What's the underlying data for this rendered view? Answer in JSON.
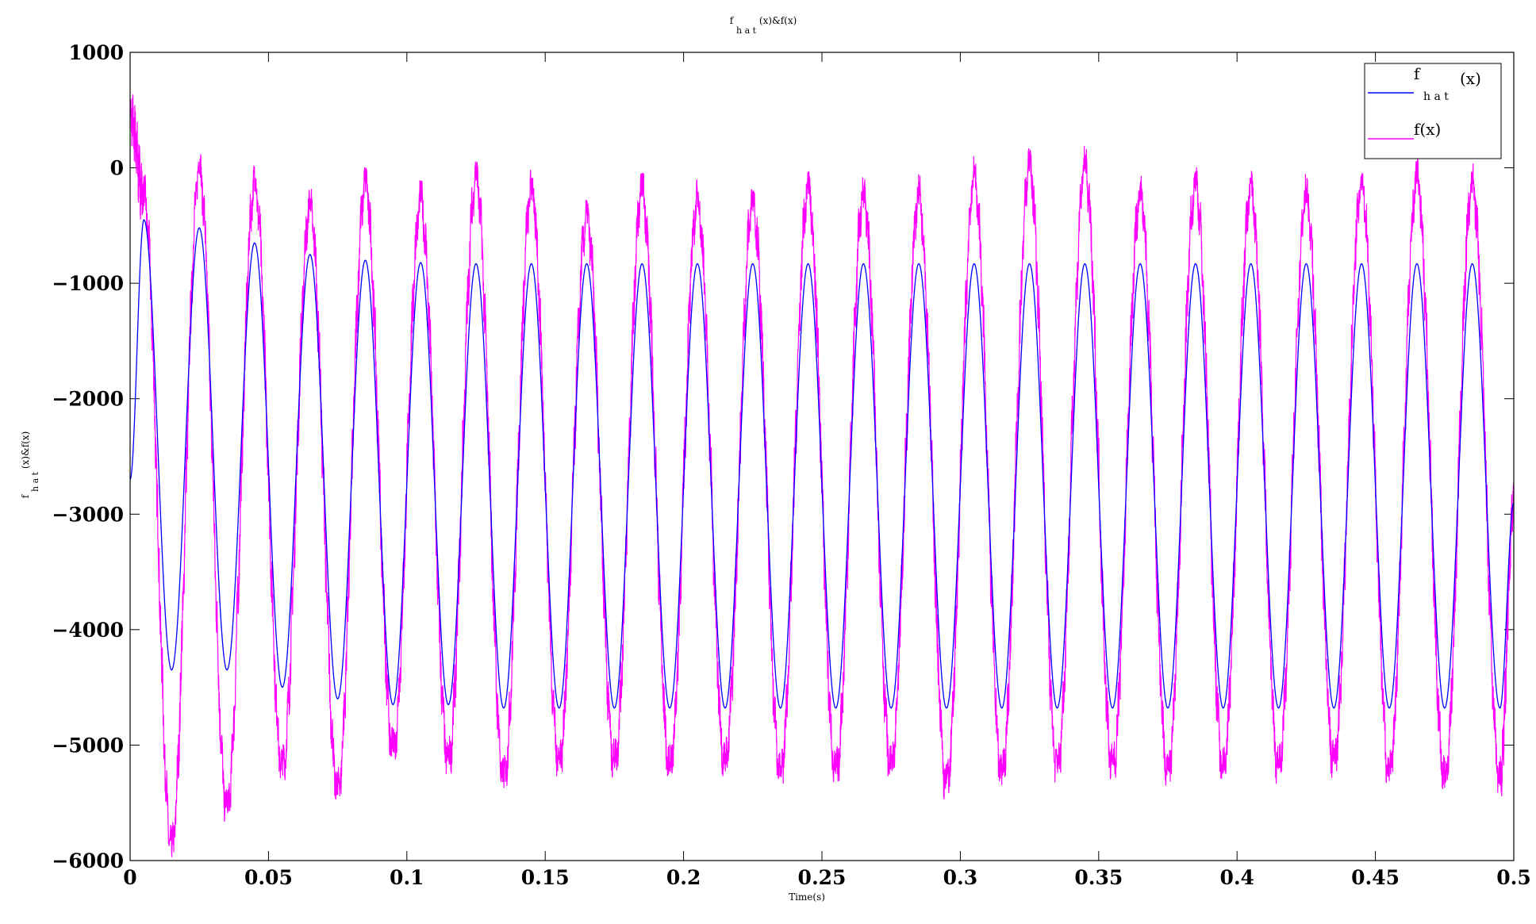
{
  "chart_data": {
    "type": "line",
    "title": {
      "base": "f",
      "sub": "h a t",
      "rest": "(x)&f(x)"
    },
    "xlabel": "Time(s)",
    "ylabel": {
      "base": "f",
      "sub": "h a t",
      "rest": "(x)&f(x)"
    },
    "xlim": [
      0,
      0.5
    ],
    "ylim": [
      -6000,
      1000
    ],
    "xticks": [
      0,
      0.05,
      0.1,
      0.15,
      0.2,
      0.25,
      0.3,
      0.35,
      0.4,
      0.45,
      0.5
    ],
    "xtick_labels": [
      "0",
      "0.05",
      "0.1",
      "0.15",
      "0.2",
      "0.25",
      "0.3",
      "0.35",
      "0.4",
      "0.45",
      "0.5"
    ],
    "yticks": [
      -6000,
      -5000,
      -4000,
      -3000,
      -2000,
      -1000,
      0,
      1000
    ],
    "ytick_labels": [
      "−6000",
      "−5000",
      "−4000",
      "−3000",
      "−2000",
      "−1000",
      "0",
      "1000"
    ],
    "grid": false,
    "legend_position": "top-right",
    "series": [
      {
        "name": {
          "base": "f",
          "sub": "h a t",
          "rest": "(x)"
        },
        "color": "#0000ff",
        "frequency_hz": 50,
        "x": [
          0,
          0.005,
          0.015,
          0.025,
          0.035,
          0.045,
          0.055,
          0.065,
          0.075,
          0.085,
          0.095,
          0.105,
          0.115,
          0.125,
          0.135,
          0.145,
          0.155,
          0.165,
          0.175,
          0.185,
          0.195,
          0.205,
          0.215,
          0.225,
          0.235,
          0.245,
          0.255,
          0.265,
          0.275,
          0.285,
          0.295,
          0.305,
          0.315,
          0.325,
          0.335,
          0.345,
          0.355,
          0.365,
          0.375,
          0.385,
          0.395,
          0.405,
          0.415,
          0.425,
          0.435,
          0.445,
          0.455,
          0.465,
          0.475,
          0.485,
          0.495,
          0.5
        ],
        "y": [
          -2700,
          -450,
          -4350,
          -520,
          -4350,
          -650,
          -4500,
          -750,
          -4600,
          -800,
          -4650,
          -820,
          -4650,
          -830,
          -4680,
          -830,
          -4680,
          -830,
          -4680,
          -830,
          -4680,
          -830,
          -4680,
          -830,
          -4680,
          -830,
          -4680,
          -830,
          -4680,
          -830,
          -4680,
          -830,
          -4680,
          -830,
          -4680,
          -830,
          -4680,
          -830,
          -4680,
          -830,
          -4680,
          -830,
          -4680,
          -830,
          -4680,
          -830,
          -4680,
          -830,
          -4680,
          -830,
          -4680,
          -2900
        ]
      },
      {
        "name": "f(x)",
        "color": "#ff00ff",
        "frequency_hz": 50,
        "x": [
          0,
          0.005,
          0.015,
          0.025,
          0.035,
          0.045,
          0.055,
          0.065,
          0.075,
          0.085,
          0.095,
          0.105,
          0.115,
          0.125,
          0.135,
          0.145,
          0.155,
          0.165,
          0.175,
          0.185,
          0.195,
          0.205,
          0.215,
          0.225,
          0.235,
          0.245,
          0.255,
          0.265,
          0.275,
          0.285,
          0.295,
          0.305,
          0.315,
          0.325,
          0.335,
          0.345,
          0.355,
          0.365,
          0.375,
          0.385,
          0.395,
          0.405,
          0.415,
          0.425,
          0.435,
          0.445,
          0.455,
          0.465,
          0.475,
          0.485,
          0.495,
          0.5
        ],
        "y": [
          450,
          -250,
          -5900,
          -20,
          -5550,
          -150,
          -5200,
          -350,
          -5400,
          -150,
          -5050,
          -300,
          -5150,
          -100,
          -5300,
          -200,
          -5150,
          -450,
          -5150,
          -200,
          -5200,
          -300,
          -5150,
          -300,
          -5250,
          -200,
          -5250,
          -250,
          -5200,
          -250,
          -5350,
          -100,
          -5250,
          0,
          -5200,
          0,
          -5200,
          -250,
          -5250,
          -150,
          -5200,
          -200,
          -5200,
          -250,
          -5150,
          -150,
          -5250,
          -100,
          -5300,
          -150,
          -5300,
          -2900
        ]
      }
    ]
  }
}
